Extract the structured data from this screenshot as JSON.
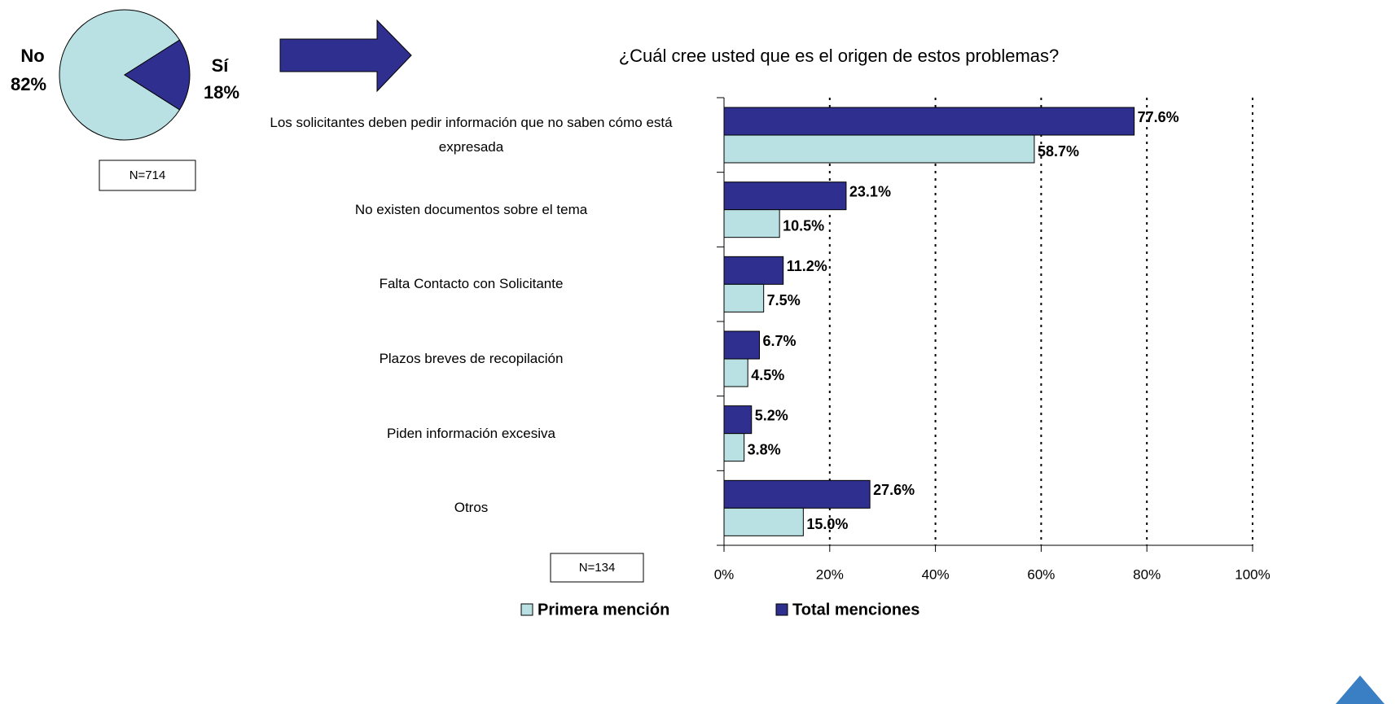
{
  "chart_data": [
    {
      "type": "pie",
      "categories": [
        "No",
        "Sí"
      ],
      "values": [
        82,
        18
      ],
      "value_labels": [
        "82%",
        "18%"
      ],
      "colors": [
        "#b9e1e3",
        "#2f2f8f"
      ],
      "annotation": "N=714"
    },
    {
      "type": "hbar",
      "title": "¿Cuál cree usted que es el origen de estos problemas?",
      "categories": [
        "Los solicitantes deben pedir información que no saben cómo está expresada",
        "No existen documentos sobre el tema",
        "Falta Contacto con Solicitante",
        "Plazos breves de recopilación",
        "Piden información excesiva",
        "Otros"
      ],
      "series": [
        {
          "name": "Primera mención",
          "color": "#b9e1e3",
          "values": [
            58.7,
            10.5,
            7.5,
            4.5,
            3.8,
            15.0
          ],
          "value_labels": [
            "58.7%",
            "10.5%",
            "7.5%",
            "4.5%",
            "3.8%",
            "15.0%"
          ]
        },
        {
          "name": "Total menciones",
          "color": "#2f2f8f",
          "values": [
            77.6,
            23.1,
            11.2,
            6.7,
            5.2,
            27.6
          ],
          "value_labels": [
            "77.6%",
            "23.1%",
            "11.2%",
            "6.7%",
            "5.2%",
            "27.6%"
          ]
        }
      ],
      "xlim": [
        0,
        100
      ],
      "xticks": [
        {
          "value": 0,
          "label": "0%"
        },
        {
          "value": 20,
          "label": "20%"
        },
        {
          "value": 40,
          "label": "40%"
        },
        {
          "value": 60,
          "label": "60%"
        },
        {
          "value": 80,
          "label": "80%"
        },
        {
          "value": 100,
          "label": "100%"
        }
      ],
      "grid": true,
      "legend": "bottom",
      "annotation": "N=134"
    }
  ]
}
